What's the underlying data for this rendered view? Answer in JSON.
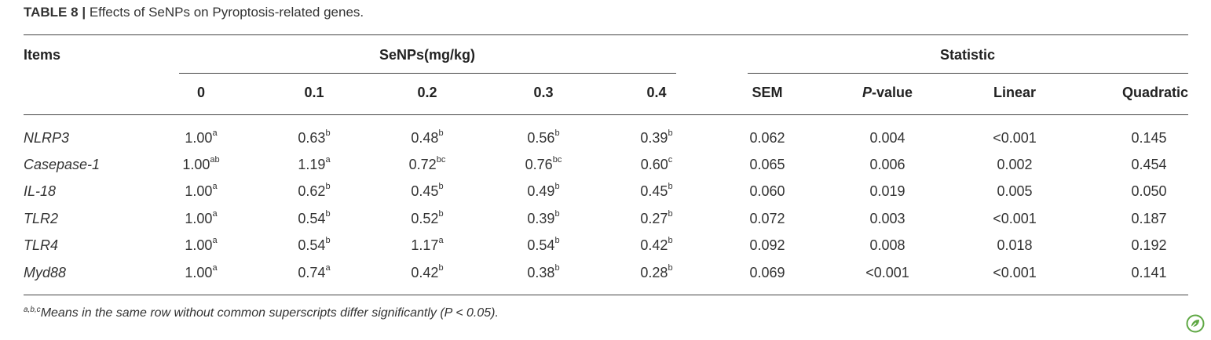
{
  "caption": {
    "label": "TABLE 8",
    "sep": "|",
    "text": "Effects of SeNPs on Pyroptosis-related genes."
  },
  "header": {
    "items": "Items",
    "group1": "SeNPs(mg/kg)",
    "group2": "Statistic",
    "cols": [
      "0",
      "0.1",
      "0.2",
      "0.3",
      "0.4",
      "SEM",
      "P",
      "-value",
      "Linear",
      "Quadratic"
    ]
  },
  "rows": [
    {
      "label": "NLRP3",
      "v": [
        "1.00",
        "0.63",
        "0.48",
        "0.56",
        "0.39"
      ],
      "s": [
        "a",
        "b",
        "b",
        "b",
        "b"
      ],
      "stats": [
        "0.062",
        "0.004",
        "<0.001",
        "0.145"
      ]
    },
    {
      "label": "Casepase-1",
      "v": [
        "1.00",
        "1.19",
        "0.72",
        "0.76",
        "0.60"
      ],
      "s": [
        "ab",
        "a",
        "bc",
        "bc",
        "c"
      ],
      "stats": [
        "0.065",
        "0.006",
        "0.002",
        "0.454"
      ]
    },
    {
      "label": "IL-18",
      "v": [
        "1.00",
        "0.62",
        "0.45",
        "0.49",
        "0.45"
      ],
      "s": [
        "a",
        "b",
        "b",
        "b",
        "b"
      ],
      "stats": [
        "0.060",
        "0.019",
        "0.005",
        "0.050"
      ]
    },
    {
      "label": "TLR2",
      "v": [
        "1.00",
        "0.54",
        "0.52",
        "0.39",
        "0.27"
      ],
      "s": [
        "a",
        "b",
        "b",
        "b",
        "b"
      ],
      "stats": [
        "0.072",
        "0.003",
        "<0.001",
        "0.187"
      ]
    },
    {
      "label": "TLR4",
      "v": [
        "1.00",
        "0.54",
        "1.17",
        "0.54",
        "0.42"
      ],
      "s": [
        "a",
        "b",
        "a",
        "b",
        "b"
      ],
      "stats": [
        "0.092",
        "0.008",
        "0.018",
        "0.192"
      ]
    },
    {
      "label": "Myd88",
      "v": [
        "1.00",
        "0.74",
        "0.42",
        "0.38",
        "0.28"
      ],
      "s": [
        "a",
        "a",
        "b",
        "b",
        "b"
      ],
      "stats": [
        "0.069",
        "<0.001",
        "<0.001",
        "0.141"
      ]
    }
  ],
  "footnote": {
    "sup": "a,b,c",
    "text": "Means in the same row without common superscripts differ significantly (P < 0.05)."
  },
  "colors": {
    "rule": "#444444",
    "text": "#333333",
    "logo": "#5fa844"
  },
  "icons": {
    "logo": "leaf-logo-icon"
  }
}
